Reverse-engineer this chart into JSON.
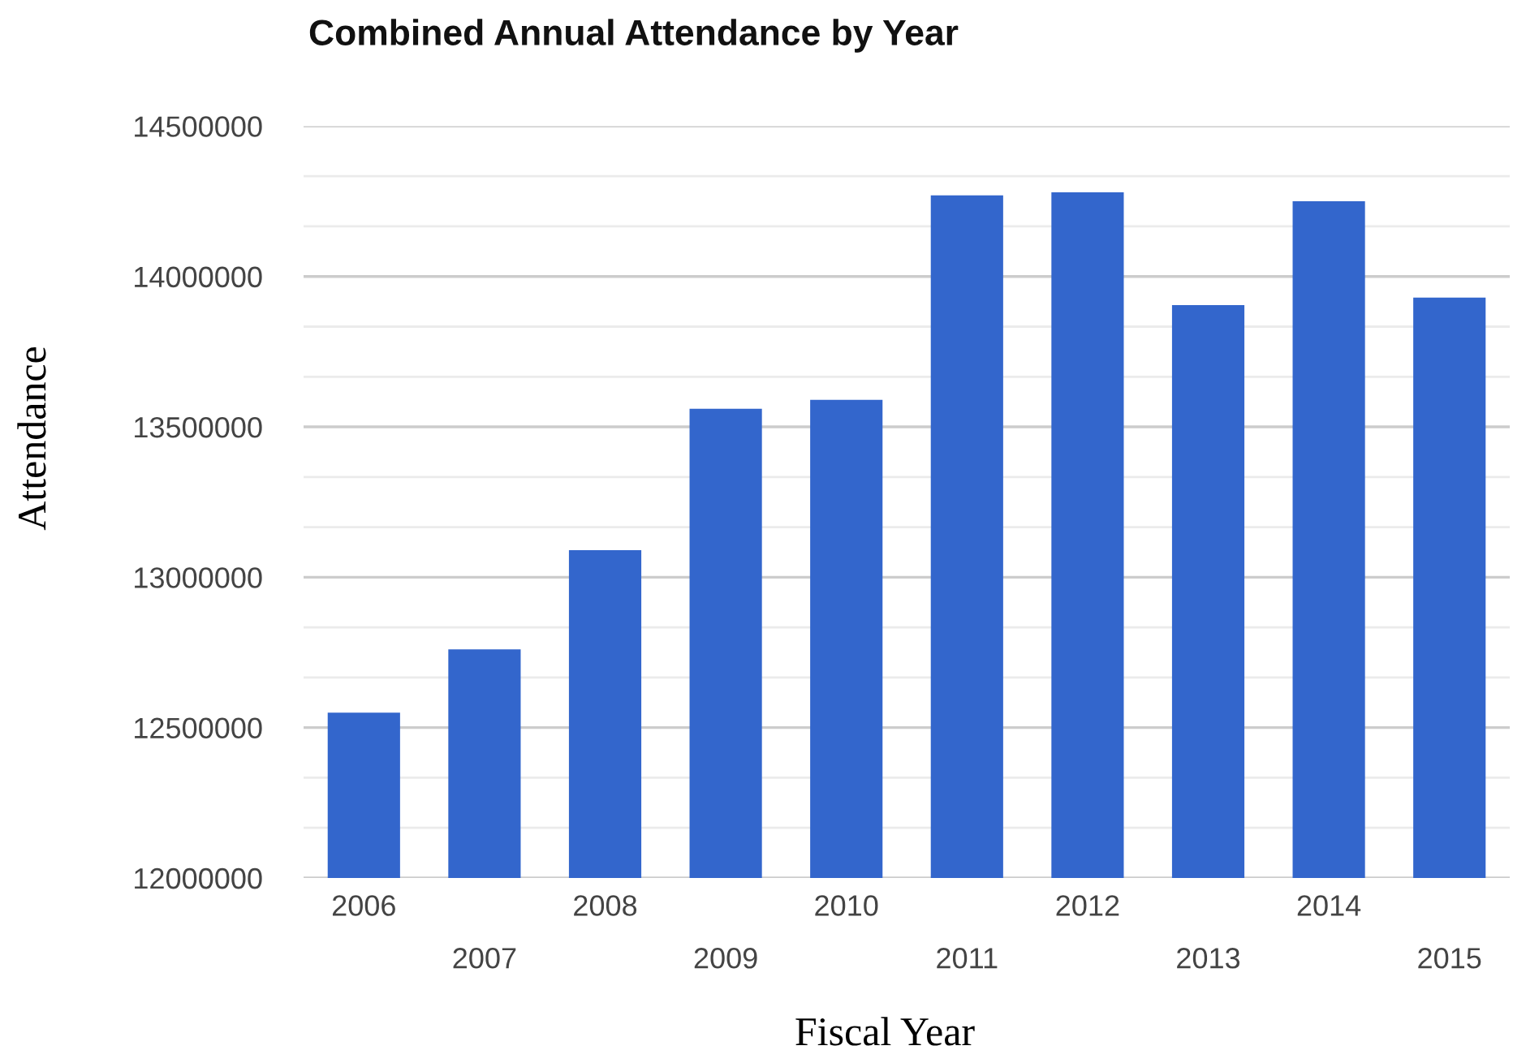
{
  "chart_data": {
    "type": "bar",
    "title": "Combined Annual Attendance by Year",
    "xlabel": "Fiscal Year",
    "ylabel": "Attendance",
    "categories": [
      "2006",
      "2007",
      "2008",
      "2009",
      "2010",
      "2011",
      "2012",
      "2013",
      "2014",
      "2015"
    ],
    "values": [
      12550000,
      12760000,
      13090000,
      13560000,
      13590000,
      14270000,
      14280000,
      13905000,
      14250000,
      13930000
    ],
    "color": "#3366cc",
    "ylim": [
      12000000,
      14500000
    ],
    "yticks": [
      12000000,
      12500000,
      13000000,
      13500000,
      14000000,
      14500000
    ],
    "grid": "y",
    "legend": false
  }
}
